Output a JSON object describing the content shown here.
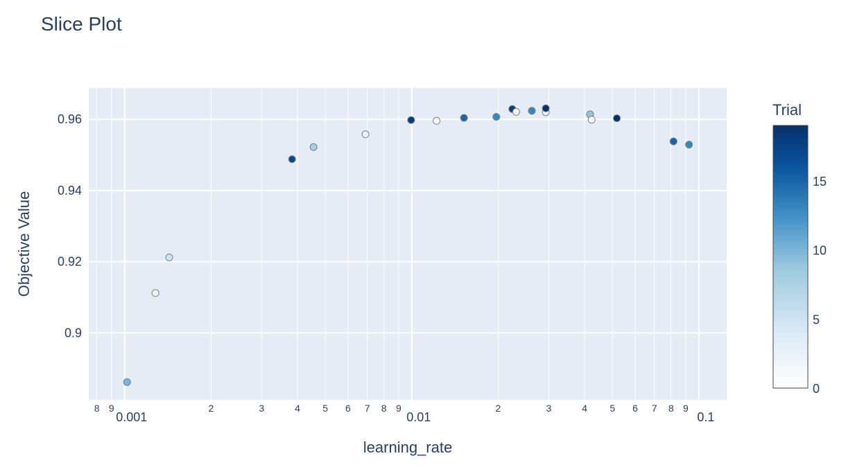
{
  "chart_data": {
    "type": "scatter",
    "title": "Slice Plot",
    "xlabel": "learning_rate",
    "ylabel": "Objective Value",
    "xscale": "log",
    "xlim": [
      0.00075,
      0.125
    ],
    "ylim": [
      0.8812,
      0.9688
    ],
    "grid": true,
    "x_major_ticks": [
      {
        "value": 0.001,
        "label": "0.001"
      },
      {
        "value": 0.01,
        "label": "0.01"
      },
      {
        "value": 0.1,
        "label": "0.1"
      }
    ],
    "x_minor_ticks": [
      {
        "value": 0.0008,
        "label": "8"
      },
      {
        "value": 0.0009,
        "label": "9"
      },
      {
        "value": 0.002,
        "label": "2"
      },
      {
        "value": 0.003,
        "label": "3"
      },
      {
        "value": 0.004,
        "label": "4"
      },
      {
        "value": 0.005,
        "label": "5"
      },
      {
        "value": 0.006,
        "label": "6"
      },
      {
        "value": 0.007,
        "label": "7"
      },
      {
        "value": 0.008,
        "label": "8"
      },
      {
        "value": 0.009,
        "label": "9"
      },
      {
        "value": 0.02,
        "label": "2"
      },
      {
        "value": 0.03,
        "label": "3"
      },
      {
        "value": 0.04,
        "label": "4"
      },
      {
        "value": 0.05,
        "label": "5"
      },
      {
        "value": 0.06,
        "label": "6"
      },
      {
        "value": 0.07,
        "label": "7"
      },
      {
        "value": 0.08,
        "label": "8"
      },
      {
        "value": 0.09,
        "label": "9"
      }
    ],
    "y_ticks": [
      {
        "value": 0.9,
        "label": "0.9"
      },
      {
        "value": 0.92,
        "label": "0.92"
      },
      {
        "value": 0.94,
        "label": "0.94"
      },
      {
        "value": 0.96,
        "label": "0.96"
      }
    ],
    "colorbar": {
      "title": "Trial",
      "min": 0,
      "max": 19,
      "ticks": [
        {
          "value": 0,
          "label": "0"
        },
        {
          "value": 5,
          "label": "5"
        },
        {
          "value": 10,
          "label": "10"
        },
        {
          "value": 15,
          "label": "15"
        }
      ],
      "colorscale": [
        "#ffffff",
        "#deebf7",
        "#9ecae1",
        "#4292c6",
        "#08519c",
        "#08306b"
      ]
    },
    "points": [
      {
        "x": 0.00102,
        "y": 0.8862,
        "trial": 10
      },
      {
        "x": 0.00128,
        "y": 0.9112,
        "trial": 1
      },
      {
        "x": 0.00143,
        "y": 0.9212,
        "trial": 5
      },
      {
        "x": 0.00383,
        "y": 0.9488,
        "trial": 17
      },
      {
        "x": 0.00455,
        "y": 0.9522,
        "trial": 8
      },
      {
        "x": 0.0069,
        "y": 0.9558,
        "trial": 2
      },
      {
        "x": 0.00995,
        "y": 0.9598,
        "trial": 18
      },
      {
        "x": 0.0122,
        "y": 0.9596,
        "trial": 0
      },
      {
        "x": 0.0152,
        "y": 0.9604,
        "trial": 15
      },
      {
        "x": 0.0197,
        "y": 0.9607,
        "trial": 13
      },
      {
        "x": 0.0224,
        "y": 0.9629,
        "trial": 18
      },
      {
        "x": 0.0231,
        "y": 0.9621,
        "trial": 1
      },
      {
        "x": 0.0262,
        "y": 0.9624,
        "trial": 13
      },
      {
        "x": 0.0293,
        "y": 0.962,
        "trial": 2
      },
      {
        "x": 0.0293,
        "y": 0.9631,
        "trial": 19
      },
      {
        "x": 0.0418,
        "y": 0.9614,
        "trial": 9
      },
      {
        "x": 0.0423,
        "y": 0.9599,
        "trial": 1
      },
      {
        "x": 0.0518,
        "y": 0.9603,
        "trial": 19
      },
      {
        "x": 0.0816,
        "y": 0.9538,
        "trial": 15
      },
      {
        "x": 0.0924,
        "y": 0.9529,
        "trial": 13
      }
    ]
  }
}
